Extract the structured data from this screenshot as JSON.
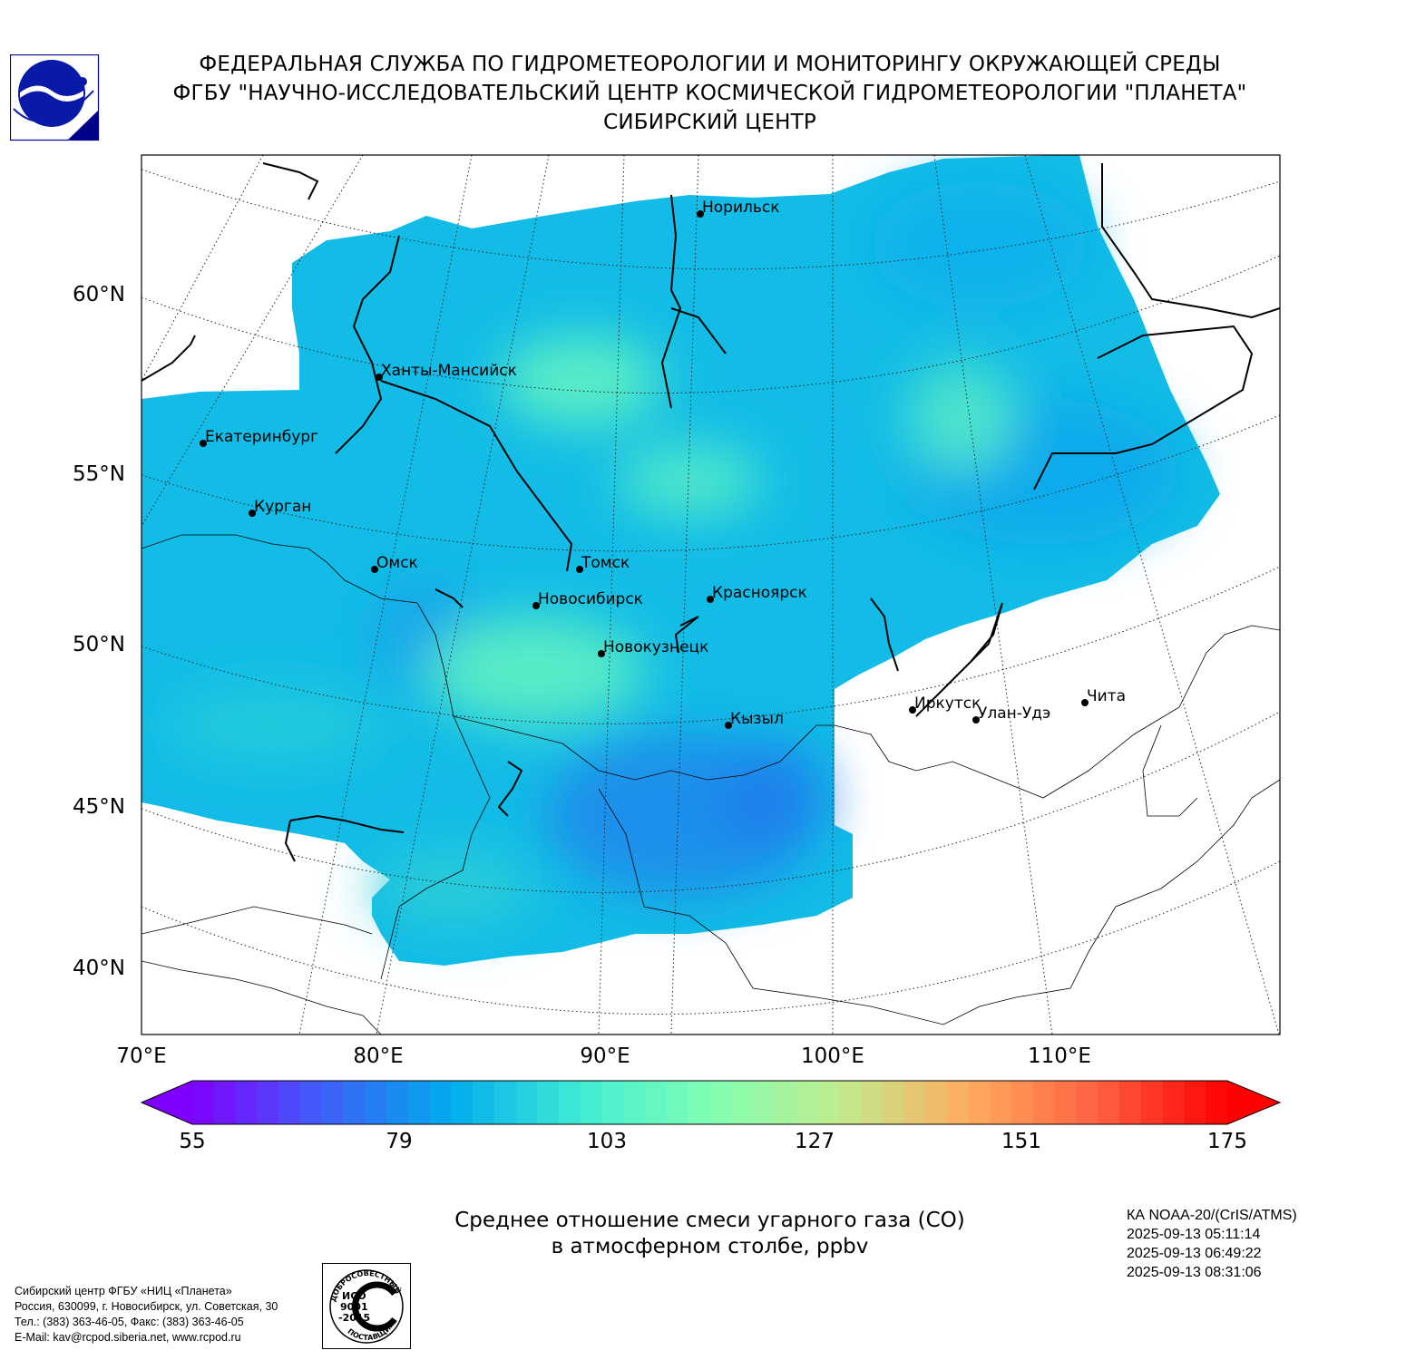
{
  "header": {
    "line1": "ФЕДЕРАЛЬНАЯ СЛУЖБА ПО ГИДРОМЕТЕОРОЛОГИИ И МОНИТОРИНГУ ОКРУЖАЮЩЕЙ СРЕДЫ",
    "line2": "ФГБУ \"НАУЧНО-ИССЛЕДОВАТЕЛЬСКИЙ ЦЕНТР КОСМИЧЕСКОЙ ГИДРОМЕТЕОРОЛОГИИ \"ПЛАНЕТА\"",
    "line3": "СИБИРСКИЙ ЦЕНТР"
  },
  "map": {
    "lat_labels": [
      "60°N",
      "55°N",
      "50°N",
      "45°N",
      "40°N"
    ],
    "lon_labels": [
      "70°E",
      "80°E",
      "90°E",
      "100°E",
      "110°E"
    ],
    "cities": [
      {
        "name": "Норильск"
      },
      {
        "name": "Ханты-Мансийск"
      },
      {
        "name": "Екатеринбург"
      },
      {
        "name": "Курган"
      },
      {
        "name": "Омск"
      },
      {
        "name": "Томск"
      },
      {
        "name": "Новосибирск"
      },
      {
        "name": "Красноярск"
      },
      {
        "name": "Новокузнецк"
      },
      {
        "name": "Кызыл"
      },
      {
        "name": "Иркутск"
      },
      {
        "name": "Улан-Удэ"
      },
      {
        "name": "Чита"
      }
    ],
    "field_colors": {
      "low": "#00aeea",
      "mid": "#1ec8e0",
      "high": "#5ef0c0",
      "min_spot": "#3d6cf5"
    }
  },
  "colorbar": {
    "ticks": [
      "55",
      "79",
      "103",
      "127",
      "151",
      "175"
    ],
    "min": 55,
    "max": 175,
    "colors": [
      "#7f00ff",
      "#3f5ff8",
      "#00acec",
      "#40ecd4",
      "#7fffb2",
      "#c0ec8e",
      "#ffac60",
      "#ff6040",
      "#ff0000"
    ]
  },
  "caption": {
    "line1": "Среднее отношение смеси угарного газа (CO)",
    "line2": "в атмосферном столбе, ppbv"
  },
  "satellite": {
    "name": "КА NOAA-20/(CrIS/ATMS)",
    "times": [
      "2025-09-13 05:11:14",
      "2025-09-13 06:49:22",
      "2025-09-13 08:31:06"
    ]
  },
  "address": {
    "line1": "Сибирский центр ФГБУ «НИЦ «Планета»",
    "line2": "Россия, 630099, г. Новосибирск, ул. Советская, 30",
    "line3": "Тел.: (383) 363-46-05, Факс: (383) 363-46-05",
    "line4": "E-Mail: kav@rcpod.siberia.net, www.rcpod.ru"
  },
  "iso": {
    "top_text": "ДОБРОСОВЕСТНЫЙ",
    "bottom_text": "ПОСТАВЩИК",
    "l1": "ИСО",
    "l2": "9001",
    "l3": "-2015"
  }
}
